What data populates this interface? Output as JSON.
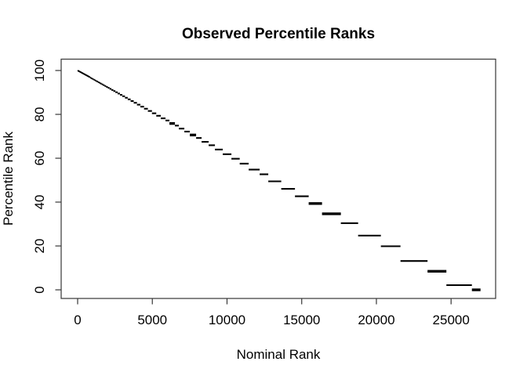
{
  "window": {
    "background": "#ffffff"
  },
  "chart_data": {
    "type": "scatter",
    "style": "horizontal-tie-group-segments",
    "title": "Observed Percentile Ranks",
    "xlabel": "Nominal Rank",
    "ylabel": "Percentile Rank",
    "x_tick_labels": [
      "0",
      "5000",
      "10000",
      "15000",
      "20000",
      "25000"
    ],
    "x_tick_values": [
      0,
      5000,
      10000,
      15000,
      20000,
      25000
    ],
    "y_tick_labels": [
      "0",
      "20",
      "40",
      "60",
      "80",
      "100"
    ],
    "y_tick_values": [
      0,
      20,
      40,
      60,
      80,
      100
    ],
    "xlim": [
      -1080,
      28050
    ],
    "ylim": [
      -4,
      104
    ],
    "grid": false,
    "legend": false,
    "total_ranks": 26970,
    "colors": {
      "data": "#000000",
      "axis": "#3d3d3d",
      "text": "#000000"
    },
    "lead_line": {
      "x1": 1,
      "y1": 100,
      "x2": 819,
      "y2": 96.96
    },
    "segments_format": [
      "x_start_rank",
      "x_end_rank",
      "percentile_rank",
      "thick_flag_optional"
    ],
    "segments": [
      [
        819,
        867,
        96.79
      ],
      [
        867,
        917,
        96.6
      ],
      [
        917,
        970,
        96.4
      ],
      [
        970,
        1027,
        96.19
      ],
      [
        1027,
        1086,
        95.97
      ],
      [
        1086,
        1149,
        95.74
      ],
      [
        1149,
        1216,
        95.49
      ],
      [
        1216,
        1286,
        95.23
      ],
      [
        1286,
        1361,
        94.95
      ],
      [
        1361,
        1440,
        94.66
      ],
      [
        1440,
        1523,
        94.35
      ],
      [
        1523,
        1611,
        94.03
      ],
      [
        1611,
        1705,
        93.68
      ],
      [
        1705,
        1804,
        93.31
      ],
      [
        1804,
        1908,
        92.93
      ],
      [
        1908,
        2019,
        92.51
      ],
      [
        2019,
        2136,
        92.08
      ],
      [
        2136,
        2260,
        91.62
      ],
      [
        2260,
        2391,
        91.13
      ],
      [
        2391,
        2529,
        90.62
      ],
      [
        2529,
        2676,
        90.08
      ],
      [
        2676,
        2831,
        89.5
      ],
      [
        2831,
        2995,
        88.9
      ],
      [
        2995,
        3169,
        88.25
      ],
      [
        3169,
        3353,
        87.57
      ],
      [
        3353,
        3547,
        86.85
      ],
      [
        3547,
        3753,
        86.08
      ],
      [
        3753,
        3971,
        85.28
      ],
      [
        3971,
        4201,
        84.42
      ],
      [
        4201,
        4444,
        83.52
      ],
      [
        4444,
        4702,
        82.57
      ],
      [
        4702,
        4975,
        81.55
      ],
      [
        4975,
        5263,
        80.49
      ],
      [
        5263,
        5568,
        79.36
      ],
      [
        5568,
        5883,
        78.19
      ],
      [
        5883,
        6145,
        77.21
      ],
      [
        6145,
        6513,
        75.85,
        1
      ],
      [
        6513,
        6775,
        74.88
      ],
      [
        6775,
        7143,
        73.51
      ],
      [
        7143,
        7511,
        72.15
      ],
      [
        7511,
        7931,
        70.59,
        1
      ],
      [
        7931,
        8299,
        69.23
      ],
      [
        8299,
        8771,
        67.48
      ],
      [
        8771,
        9191,
        65.92
      ],
      [
        9191,
        9716,
        63.97
      ],
      [
        9716,
        10294,
        61.83
      ],
      [
        10294,
        10850,
        59.77
      ],
      [
        10850,
        11450,
        57.54
      ],
      [
        11450,
        12185,
        54.82
      ],
      [
        12185,
        12762,
        52.68
      ],
      [
        12762,
        13630,
        49.46
      ],
      [
        13630,
        14548,
        46.06
      ],
      [
        14548,
        15467,
        42.65
      ],
      [
        15467,
        16360,
        39.34,
        1
      ],
      [
        16360,
        17621,
        34.66,
        1
      ],
      [
        17621,
        18776,
        30.38
      ],
      [
        18776,
        20300,
        24.73
      ],
      [
        20300,
        21612,
        19.87
      ],
      [
        21612,
        23424,
        13.15
      ],
      [
        23424,
        24685,
        8.47,
        1
      ],
      [
        24685,
        26393,
        2.14
      ],
      [
        26393,
        26970,
        0,
        1
      ]
    ]
  }
}
